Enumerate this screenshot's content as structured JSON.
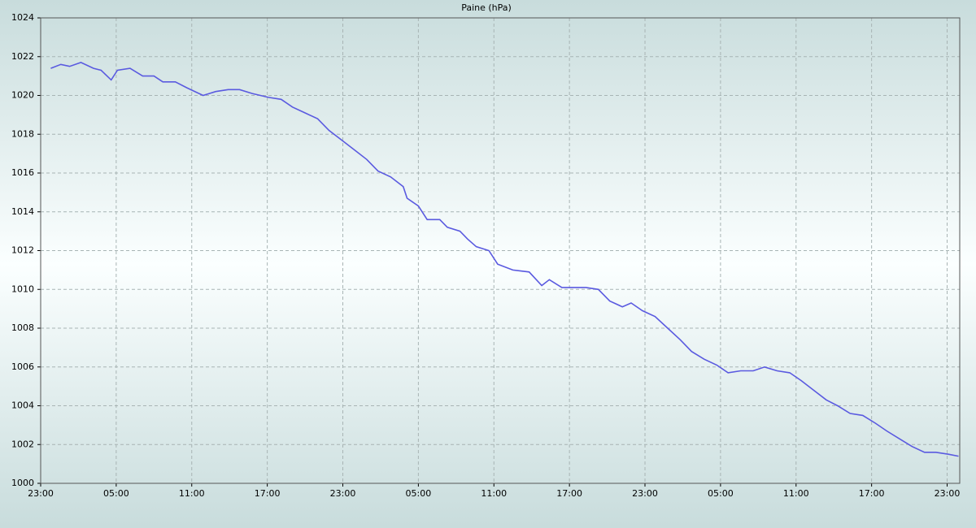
{
  "chart_data": {
    "type": "line",
    "title": "Paine (hPa)",
    "x": [
      0.8,
      1.6,
      2.3,
      3.2,
      4.2,
      4.8,
      5.6,
      6.1,
      7.1,
      8.1,
      9.0,
      9.7,
      10.7,
      11.6,
      12.9,
      13.9,
      14.9,
      15.8,
      16.8,
      18.1,
      19.1,
      20.0,
      21.0,
      22.0,
      22.9,
      23.9,
      24.9,
      25.9,
      26.8,
      27.8,
      28.8,
      29.1,
      30.0,
      30.7,
      31.7,
      32.3,
      33.3,
      33.9,
      34.6,
      35.6,
      36.3,
      37.5,
      38.8,
      39.8,
      40.4,
      41.4,
      42.3,
      43.3,
      44.3,
      45.2,
      46.2,
      46.9,
      47.8,
      48.8,
      49.8,
      50.8,
      51.7,
      52.7,
      53.7,
      54.6,
      55.6,
      56.6,
      57.5,
      58.5,
      59.5,
      60.4,
      61.4,
      62.4,
      63.3,
      64.3,
      65.3,
      66.3,
      67.2,
      68.2,
      69.2,
      70.2,
      71.1,
      72.1,
      72.9
    ],
    "series": [
      {
        "name": "Paine",
        "color": "#5a5ae0",
        "values": [
          1021.4,
          1021.6,
          1021.5,
          1021.7,
          1021.4,
          1021.3,
          1020.8,
          1021.3,
          1021.4,
          1021.0,
          1021.0,
          1020.7,
          1020.7,
          1020.4,
          1020.0,
          1020.2,
          1020.3,
          1020.3,
          1020.1,
          1019.9,
          1019.8,
          1019.4,
          1019.1,
          1018.8,
          1018.2,
          1017.7,
          1017.2,
          1016.7,
          1016.1,
          1015.8,
          1015.3,
          1014.7,
          1014.3,
          1013.6,
          1013.6,
          1013.2,
          1013.0,
          1012.6,
          1012.2,
          1012.0,
          1011.3,
          1011.0,
          1010.9,
          1010.2,
          1010.5,
          1010.1,
          1010.1,
          1010.1,
          1010.0,
          1009.4,
          1009.1,
          1009.3,
          1008.9,
          1008.6,
          1008.0,
          1007.4,
          1006.8,
          1006.4,
          1006.1,
          1005.7,
          1005.8,
          1005.8,
          1006.0,
          1005.8,
          1005.7,
          1005.3,
          1004.8,
          1004.3,
          1004.0,
          1003.6,
          1003.5,
          1003.1,
          1002.7,
          1002.3,
          1001.9,
          1001.6,
          1001.6,
          1001.5,
          1001.4
        ]
      }
    ],
    "xlim": [
      0,
      73
    ],
    "xticks": [
      {
        "value": 0,
        "label": "23:00"
      },
      {
        "value": 6,
        "label": "05:00"
      },
      {
        "value": 12,
        "label": "11:00"
      },
      {
        "value": 18,
        "label": "17:00"
      },
      {
        "value": 24,
        "label": "23:00"
      },
      {
        "value": 30,
        "label": "05:00"
      },
      {
        "value": 36,
        "label": "11:00"
      },
      {
        "value": 42,
        "label": "17:00"
      },
      {
        "value": 48,
        "label": "23:00"
      },
      {
        "value": 54,
        "label": "05:00"
      },
      {
        "value": 60,
        "label": "11:00"
      },
      {
        "value": 66,
        "label": "17:00"
      },
      {
        "value": 72,
        "label": "23:00"
      }
    ],
    "ylim": [
      1000,
      1024
    ],
    "yticks": [
      1000,
      1002,
      1004,
      1006,
      1008,
      1010,
      1012,
      1014,
      1016,
      1018,
      1020,
      1022,
      1024
    ],
    "grid": true
  }
}
